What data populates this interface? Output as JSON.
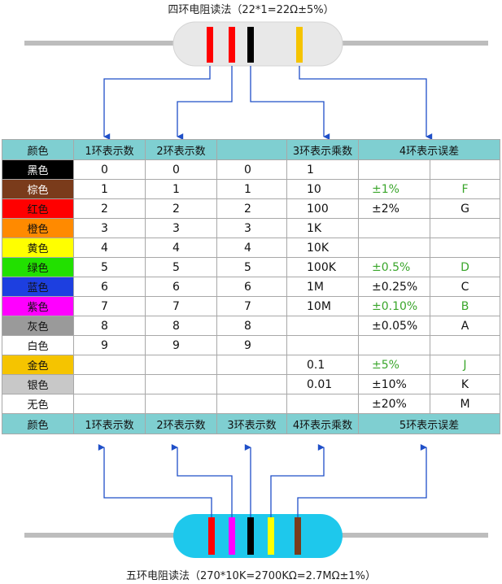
{
  "top_title": "四环电阻读法（22*1=22Ω±5%）",
  "table": {
    "header": [
      "颜色",
      "1环表示数",
      "2环表示数",
      null,
      "3环表示乘数",
      "4环表示误差"
    ],
    "rows": [
      [
        "黑色",
        "0",
        "0",
        "0",
        "1",
        null,
        null
      ],
      [
        "棕色",
        "1",
        "1",
        "1",
        "10",
        "±1%",
        "F"
      ],
      [
        "红色",
        "2",
        "2",
        "2",
        "100",
        "±2%",
        "G"
      ],
      [
        "橙色",
        "3",
        "3",
        "3",
        "1K",
        null,
        null
      ],
      [
        "黄色",
        "4",
        "4",
        "4",
        "10K",
        null,
        null
      ],
      [
        "绿色",
        "5",
        "5",
        "5",
        "100K",
        "±0.5%",
        "D"
      ],
      [
        "蓝色",
        "6",
        "6",
        "6",
        "1M",
        "±0.25%",
        "C"
      ],
      [
        "紫色",
        "7",
        "7",
        "7",
        "10M",
        "±0.10%",
        "B"
      ],
      [
        "灰色",
        "8",
        "8",
        "8",
        null,
        "±0.05%",
        "A"
      ],
      [
        "白色",
        "9",
        "9",
        "9",
        null,
        null,
        null
      ],
      [
        "金色",
        null,
        null,
        null,
        "0.1",
        "±5%",
        "J"
      ],
      [
        "银色",
        null,
        null,
        null,
        "0.01",
        "±10%",
        "K"
      ],
      [
        "无色",
        null,
        null,
        null,
        null,
        "±20%",
        "M"
      ]
    ],
    "footer": [
      "颜色",
      "1环表示数",
      "2环表示数",
      "3环表示数",
      "4环表示乘数",
      "5环表示误差"
    ]
  },
  "bottom_title": "五环电阻读法（270*10K=2700KΩ=2.7MΩ±1%）"
}
